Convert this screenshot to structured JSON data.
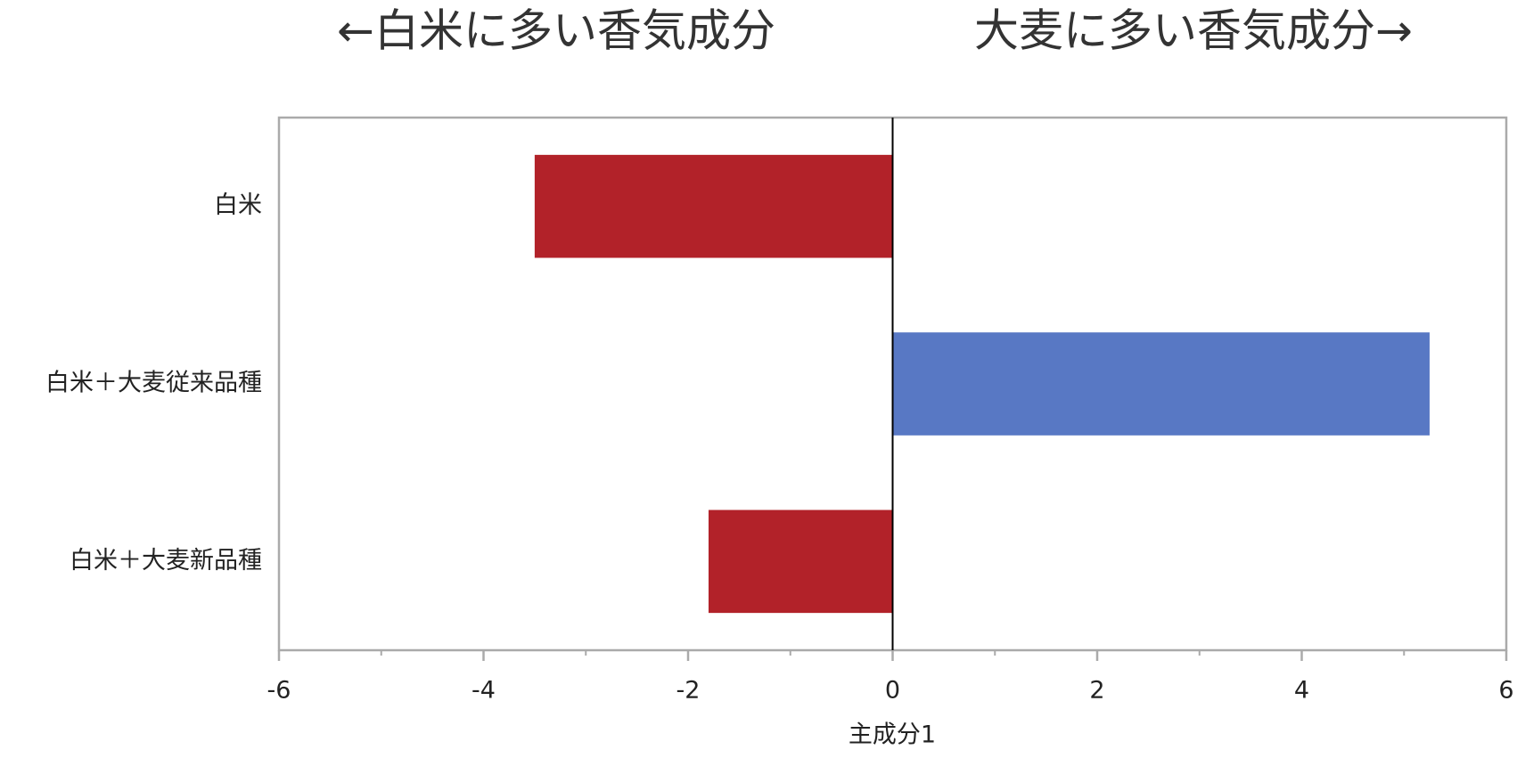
{
  "chart_data": {
    "type": "hbar",
    "annotations": [
      "←白米に多い香気成分",
      "大麦に多い香気成分→"
    ],
    "xlabel": "主成分1",
    "categories": [
      "白米",
      "白米＋大麦従来品種",
      "白米＋大麦新品種"
    ],
    "values": [
      -3.5,
      5.25,
      -1.8
    ],
    "colors": [
      "#b22229",
      "#5878c4",
      "#b22229"
    ],
    "xlim": [
      -6,
      6
    ],
    "xticks": [
      -6,
      -4,
      -2,
      0,
      2,
      4,
      6
    ],
    "xminorticks": [
      -5,
      -3,
      -1,
      1,
      3,
      5
    ]
  }
}
